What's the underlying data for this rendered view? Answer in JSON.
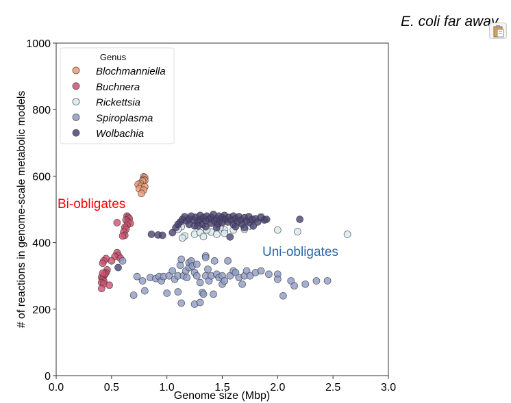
{
  "chart_data": {
    "type": "scatter",
    "title": "E. coli far away",
    "xlabel": "Genome size (Mbp)",
    "ylabel": "# of reactions in genome-scale metabolic models",
    "xlim": [
      0,
      3
    ],
    "ylim": [
      0,
      1000
    ],
    "xticks": [
      "0.0",
      "0.5",
      "1.0",
      "1.5",
      "2.0",
      "2.5",
      "3.0"
    ],
    "yticks": [
      "0",
      "200",
      "400",
      "600",
      "800",
      "1000"
    ],
    "grid": false,
    "legend": {
      "title": "Genus",
      "placement": "top-left"
    },
    "annotations": [
      {
        "text": "Bi-obligates",
        "x": 0.02,
        "y": 520,
        "color": "#ff0000"
      },
      {
        "text": "Uni-obligates",
        "x": 1.85,
        "y": 365,
        "color": "#2a66a3"
      }
    ],
    "series": [
      {
        "name": "Blochmanniella",
        "color": "#eb9a74",
        "points": [
          [
            0.79,
            598
          ],
          [
            0.8,
            595
          ],
          [
            0.79,
            590
          ],
          [
            0.8,
            587
          ],
          [
            0.78,
            585
          ],
          [
            0.76,
            578
          ],
          [
            0.74,
            575
          ],
          [
            0.77,
            570
          ],
          [
            0.8,
            568
          ],
          [
            0.75,
            562
          ],
          [
            0.79,
            558
          ],
          [
            0.77,
            548
          ]
        ]
      },
      {
        "name": "Buchnera",
        "color": "#d0506e",
        "points": [
          [
            0.64,
            480
          ],
          [
            0.65,
            476
          ],
          [
            0.66,
            472
          ],
          [
            0.63,
            468
          ],
          [
            0.65,
            462
          ],
          [
            0.67,
            458
          ],
          [
            0.55,
            460
          ],
          [
            0.64,
            452
          ],
          [
            0.62,
            446
          ],
          [
            0.63,
            440
          ],
          [
            0.61,
            432
          ],
          [
            0.62,
            422
          ],
          [
            0.6,
            420
          ],
          [
            0.55,
            370
          ],
          [
            0.56,
            362
          ],
          [
            0.53,
            358
          ],
          [
            0.58,
            353
          ],
          [
            0.45,
            352
          ],
          [
            0.5,
            345
          ],
          [
            0.43,
            345
          ],
          [
            0.42,
            338
          ],
          [
            0.46,
            318
          ],
          [
            0.45,
            310
          ],
          [
            0.44,
            305
          ],
          [
            0.43,
            300
          ],
          [
            0.41,
            296
          ],
          [
            0.42,
            290
          ],
          [
            0.43,
            284
          ],
          [
            0.41,
            280
          ],
          [
            0.43,
            276
          ],
          [
            0.48,
            272
          ],
          [
            0.41,
            262
          ],
          [
            0.44,
            306
          ],
          [
            0.42,
            308
          ]
        ]
      },
      {
        "name": "Rickettsia",
        "color": "#d6eaef",
        "points": [
          [
            1.12,
            455
          ],
          [
            1.13,
            448
          ],
          [
            1.1,
            440
          ],
          [
            1.16,
            420
          ],
          [
            1.14,
            414
          ],
          [
            1.25,
            425
          ],
          [
            1.3,
            430
          ],
          [
            1.33,
            418
          ],
          [
            1.4,
            432
          ],
          [
            1.45,
            425
          ],
          [
            1.52,
            438
          ],
          [
            1.52,
            428
          ],
          [
            1.6,
            438
          ],
          [
            1.7,
            440
          ],
          [
            1.75,
            450
          ],
          [
            1.85,
            478
          ],
          [
            2.0,
            438
          ],
          [
            2.18,
            433
          ],
          [
            2.63,
            425
          ],
          [
            1.48,
            445
          ],
          [
            1.36,
            438
          ]
        ]
      },
      {
        "name": "Spiroplasma",
        "color": "#8d9bc6",
        "points": [
          [
            0.6,
            345
          ],
          [
            0.7,
            242
          ],
          [
            0.73,
            298
          ],
          [
            0.78,
            285
          ],
          [
            0.8,
            255
          ],
          [
            0.85,
            295
          ],
          [
            0.9,
            292
          ],
          [
            0.93,
            298
          ],
          [
            0.95,
            285
          ],
          [
            0.97,
            298
          ],
          [
            1.0,
            248
          ],
          [
            1.02,
            300
          ],
          [
            1.05,
            315
          ],
          [
            1.07,
            290
          ],
          [
            1.1,
            300
          ],
          [
            1.1,
            252
          ],
          [
            1.12,
            332
          ],
          [
            1.13,
            350
          ],
          [
            1.13,
            218
          ],
          [
            1.15,
            300
          ],
          [
            1.17,
            315
          ],
          [
            1.18,
            295
          ],
          [
            1.2,
            325
          ],
          [
            1.2,
            340
          ],
          [
            1.22,
            345
          ],
          [
            1.23,
            330
          ],
          [
            1.25,
            310
          ],
          [
            1.25,
            215
          ],
          [
            1.27,
            300
          ],
          [
            1.27,
            335
          ],
          [
            1.3,
            280
          ],
          [
            1.3,
            220
          ],
          [
            1.32,
            250
          ],
          [
            1.33,
            245
          ],
          [
            1.35,
            300
          ],
          [
            1.35,
            360
          ],
          [
            1.35,
            355
          ],
          [
            1.37,
            320
          ],
          [
            1.38,
            285
          ],
          [
            1.4,
            300
          ],
          [
            1.42,
            245
          ],
          [
            1.43,
            345
          ],
          [
            1.45,
            305
          ],
          [
            1.47,
            295
          ],
          [
            1.5,
            300
          ],
          [
            1.5,
            275
          ],
          [
            1.52,
            285
          ],
          [
            1.55,
            345
          ],
          [
            1.57,
            300
          ],
          [
            1.6,
            315
          ],
          [
            1.62,
            310
          ],
          [
            1.65,
            295
          ],
          [
            1.68,
            275
          ],
          [
            1.7,
            300
          ],
          [
            1.72,
            315
          ],
          [
            1.75,
            300
          ],
          [
            1.8,
            310
          ],
          [
            1.85,
            315
          ],
          [
            1.92,
            305
          ],
          [
            2.0,
            305
          ],
          [
            2.0,
            290
          ],
          [
            2.05,
            240
          ],
          [
            2.12,
            285
          ],
          [
            2.15,
            270
          ],
          [
            2.25,
            275
          ],
          [
            2.35,
            285
          ],
          [
            2.45,
            285
          ]
        ]
      },
      {
        "name": "Wolbachia",
        "color": "#4a4274",
        "points": [
          [
            0.86,
            425
          ],
          [
            0.92,
            423
          ],
          [
            0.96,
            422
          ],
          [
            1.57,
            417
          ],
          [
            2.2,
            470
          ],
          [
            0.56,
            325
          ],
          [
            1.05,
            430
          ],
          [
            1.08,
            445
          ],
          [
            1.1,
            455
          ],
          [
            1.12,
            462
          ],
          [
            1.14,
            470
          ],
          [
            1.16,
            478
          ],
          [
            1.18,
            465
          ],
          [
            1.2,
            472
          ],
          [
            1.2,
            455
          ],
          [
            1.22,
            480
          ],
          [
            1.24,
            468
          ],
          [
            1.25,
            450
          ],
          [
            1.26,
            476
          ],
          [
            1.28,
            462
          ],
          [
            1.3,
            470
          ],
          [
            1.3,
            482
          ],
          [
            1.32,
            455
          ],
          [
            1.33,
            475
          ],
          [
            1.35,
            465
          ],
          [
            1.36,
            480
          ],
          [
            1.38,
            470
          ],
          [
            1.4,
            458
          ],
          [
            1.4,
            476
          ],
          [
            1.42,
            485
          ],
          [
            1.43,
            465
          ],
          [
            1.45,
            472
          ],
          [
            1.46,
            455
          ],
          [
            1.47,
            480
          ],
          [
            1.48,
            466
          ],
          [
            1.5,
            475
          ],
          [
            1.5,
            460
          ],
          [
            1.52,
            482
          ],
          [
            1.53,
            470
          ],
          [
            1.55,
            462
          ],
          [
            1.56,
            476
          ],
          [
            1.58,
            468
          ],
          [
            1.6,
            480
          ],
          [
            1.6,
            455
          ],
          [
            1.62,
            472
          ],
          [
            1.64,
            462
          ],
          [
            1.65,
            478
          ],
          [
            1.67,
            468
          ],
          [
            1.68,
            455
          ],
          [
            1.7,
            475
          ],
          [
            1.72,
            465
          ],
          [
            1.74,
            478
          ],
          [
            1.75,
            460
          ],
          [
            1.77,
            470
          ],
          [
            1.8,
            472
          ],
          [
            1.82,
            462
          ],
          [
            1.85,
            475
          ],
          [
            1.88,
            468
          ],
          [
            1.9,
            470
          ],
          [
            1.28,
            450
          ],
          [
            1.35,
            448
          ],
          [
            1.45,
            445
          ],
          [
            1.62,
            448
          ],
          [
            1.7,
            445
          ],
          [
            1.78,
            450
          ]
        ]
      }
    ]
  },
  "toolbar": {
    "clipboard_icon": "clipboard-icon"
  }
}
